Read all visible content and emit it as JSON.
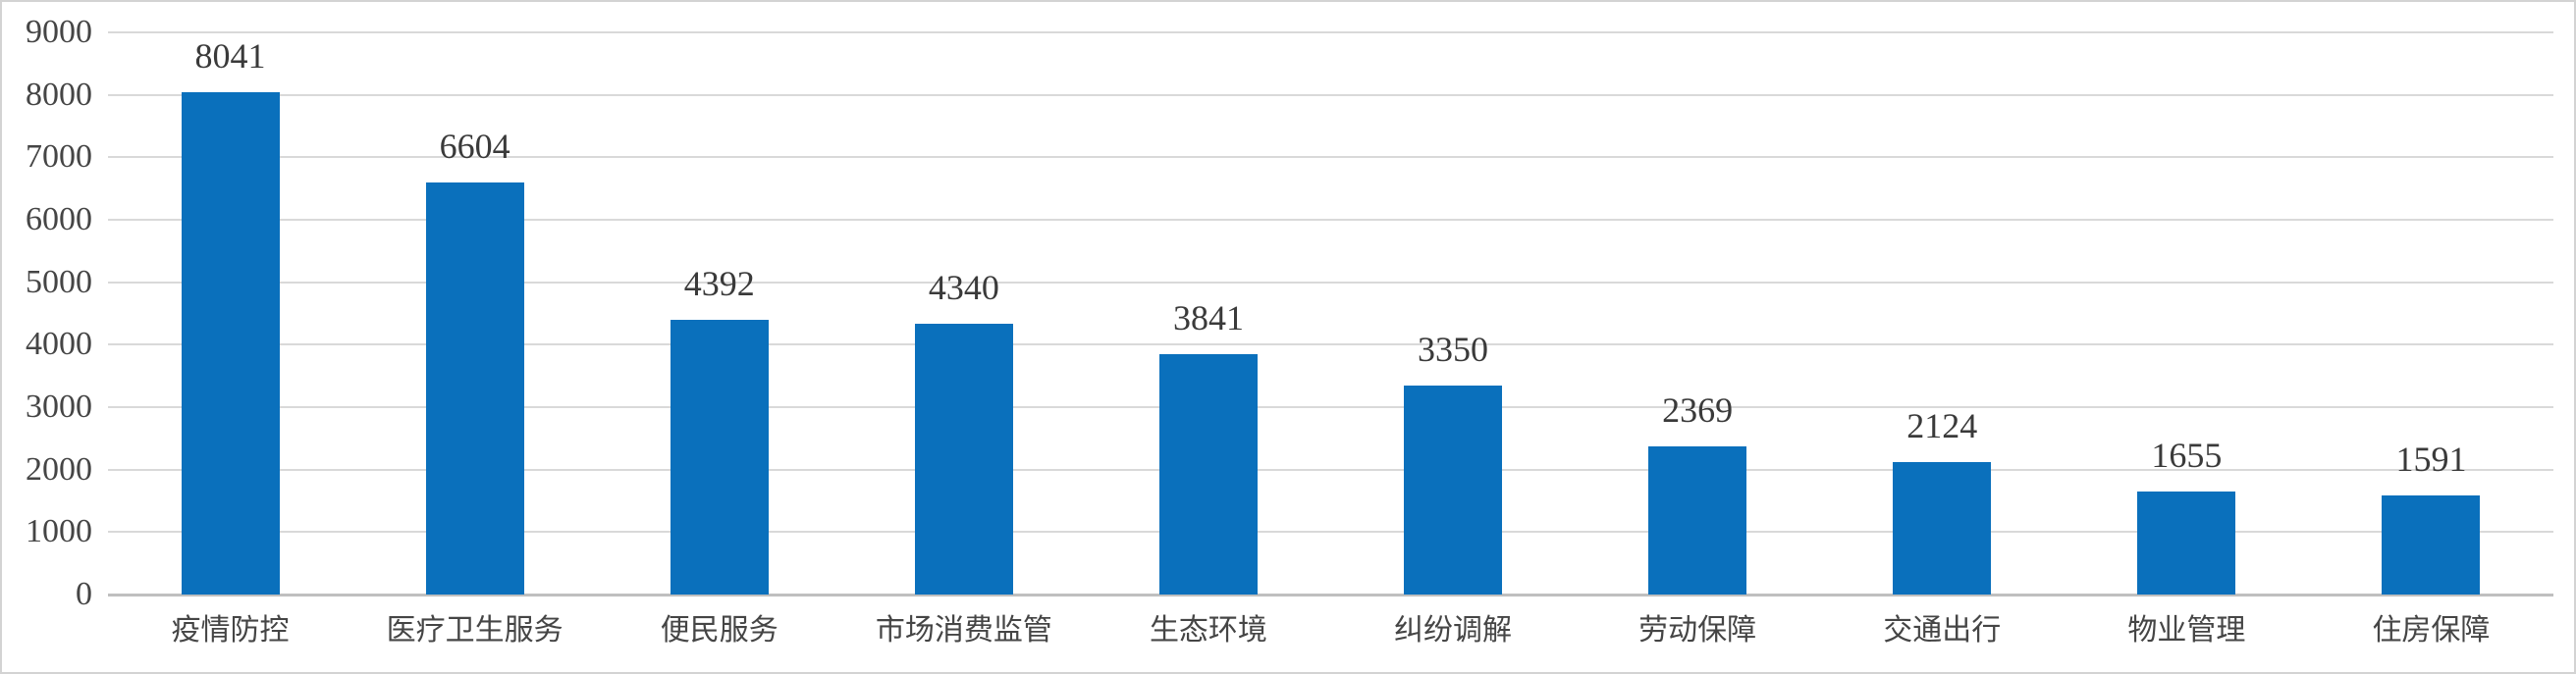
{
  "chart_data": {
    "type": "bar",
    "title": "",
    "xlabel": "",
    "ylabel": "",
    "categories": [
      "疫情防控",
      "医疗卫生服务",
      "便民服务",
      "市场消费监管",
      "生态环境",
      "纠纷调解",
      "劳动保障",
      "交通出行",
      "物业管理",
      "住房保障"
    ],
    "values": [
      8041,
      6604,
      4392,
      4340,
      3841,
      3350,
      2369,
      2124,
      1655,
      1591
    ],
    "data_labels": [
      8041,
      6604,
      4392,
      4340,
      3841,
      3350,
      2369,
      2124,
      1655,
      1591
    ],
    "ylim": [
      0,
      9000
    ],
    "yticks": [
      0,
      1000,
      2000,
      3000,
      4000,
      5000,
      6000,
      7000,
      8000,
      9000
    ],
    "grid": "horizontal",
    "legend_position": "none",
    "colors": {
      "bar": "#0a70bc",
      "gridline": "#d9d9d9",
      "axis_line": "#bfbfbf",
      "tick_text": "#454545",
      "label_text": "#3a3a3a",
      "frame_border": "#d3d3d3",
      "background": "#ffffff"
    }
  }
}
